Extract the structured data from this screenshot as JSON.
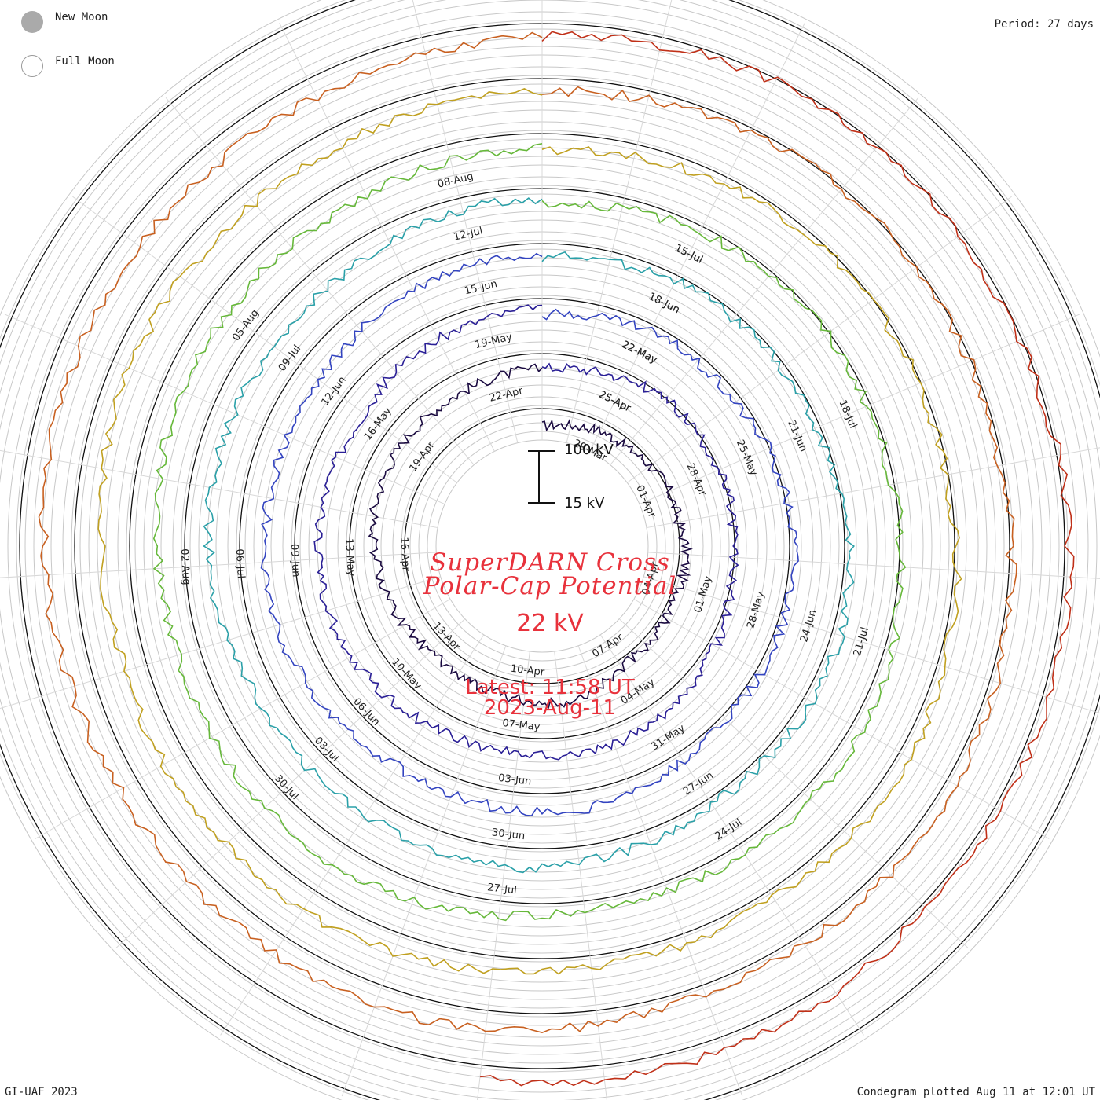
{
  "legend": {
    "new_moon_label": "New Moon",
    "full_moon_label": "Full Moon",
    "new_moon_color": "#aaaaaa"
  },
  "period_label": "Period: 27 days",
  "title_line1": "SuperDARN Cross",
  "title_line2": "Polar-Cap Potential",
  "current_value": "22 kV",
  "latest_line": "Latest: 11:58 UT",
  "latest_date": "2023-Aug-11",
  "scale": {
    "max_label": "100 kV",
    "min_label": "15 kV",
    "max_kv": 100,
    "min_kv": 15
  },
  "credit": "GI-UAF 2023",
  "plotted": "Condegram plotted Aug 11 at 12:01 UT",
  "text_color": "#e8323c",
  "chart_data": {
    "type": "line",
    "period_days": 27,
    "ylim": [
      15,
      100
    ],
    "series": [
      {
        "start": "2023-03-27",
        "color": "#1a0a40",
        "ticks": [
          "29-Mar",
          "01-Apr",
          "04-Apr",
          "07-Apr",
          "10-Apr",
          "13-Apr",
          "16-Apr",
          "19-Apr",
          "22-Apr",
          "25-Apr"
        ],
        "values": [
          44,
          48,
          55,
          52,
          58,
          61,
          57,
          66,
          60,
          55,
          52,
          49,
          62,
          68,
          60,
          48,
          46,
          42,
          48,
          52,
          57,
          62,
          60,
          58,
          52,
          50,
          49
        ]
      },
      {
        "start": "2023-04-23",
        "color": "#2a1f96",
        "ticks": [
          "25-Apr",
          "28-Apr",
          "01-May",
          "04-May",
          "07-May",
          "10-May",
          "13-May",
          "16-May",
          "19-May",
          "22-May"
        ],
        "values": [
          50,
          54,
          60,
          66,
          62,
          58,
          54,
          48,
          52,
          58,
          64,
          70,
          66,
          60,
          55,
          50,
          52,
          58,
          62,
          66,
          60,
          56,
          50,
          46,
          52,
          56,
          58
        ]
      },
      {
        "start": "2023-05-20",
        "color": "#3344c0",
        "ticks": [
          "22-May",
          "25-May",
          "28-May",
          "31-May",
          "03-Jun",
          "06-Jun",
          "09-Jun",
          "12-Jun",
          "15-Jun",
          "18-Jun"
        ],
        "values": [
          46,
          52,
          58,
          54,
          50,
          56,
          60,
          64,
          58,
          52,
          48,
          54,
          62,
          66,
          58,
          52,
          46,
          50,
          56,
          62,
          58,
          52,
          48,
          44,
          50,
          56,
          60
        ]
      },
      {
        "start": "2023-06-16",
        "color": "#2aa0a8",
        "ticks": [
          "18-Jun",
          "21-Jun",
          "24-Jun",
          "27-Jun",
          "30-Jun",
          "03-Jul",
          "06-Jul",
          "09-Jul",
          "12-Jul",
          "15-Jul"
        ],
        "values": [
          52,
          56,
          62,
          58,
          54,
          50,
          56,
          62,
          66,
          60,
          52,
          48,
          54,
          60,
          64,
          58,
          52,
          48,
          46,
          52,
          58,
          62,
          56,
          50,
          48,
          54,
          58
        ]
      },
      {
        "start": "2023-07-13",
        "color": "#66b83a",
        "ticks": [
          "15-Jul",
          "18-Jul",
          "21-Jul",
          "24-Jul",
          "27-Jul",
          "30-Jul",
          "02-Aug",
          "05-Aug",
          "08-Aug"
        ],
        "values": [
          48,
          54,
          60,
          64,
          58,
          52,
          50,
          56,
          62,
          66,
          62,
          56,
          50,
          46,
          52,
          58,
          62,
          58,
          52,
          48,
          50,
          56,
          60,
          54,
          50,
          46,
          52
        ]
      },
      {
        "start": "2023-08-09",
        "color": "#c0a020",
        "ticks": [],
        "values": [
          46,
          52,
          56,
          60,
          58,
          54,
          50,
          56,
          62,
          66,
          60,
          54,
          50,
          48,
          54,
          58,
          62,
          56,
          52,
          48,
          54,
          60,
          64,
          58,
          52,
          50,
          54
        ]
      },
      {
        "start": "2023-09-05",
        "color": "#c86020",
        "ticks": [],
        "values": [
          52,
          58,
          62,
          66,
          60,
          54,
          50,
          56,
          60,
          64,
          58,
          52,
          48,
          54,
          60,
          62,
          56,
          50,
          46,
          52,
          58,
          62,
          60,
          54,
          50,
          48,
          52
        ]
      },
      {
        "start": "2023-10-02",
        "color": "#c03018",
        "ticks": [],
        "values": [
          54,
          60,
          66,
          62,
          56,
          52,
          58,
          64,
          60,
          54,
          50,
          56,
          60,
          52
        ]
      }
    ]
  }
}
